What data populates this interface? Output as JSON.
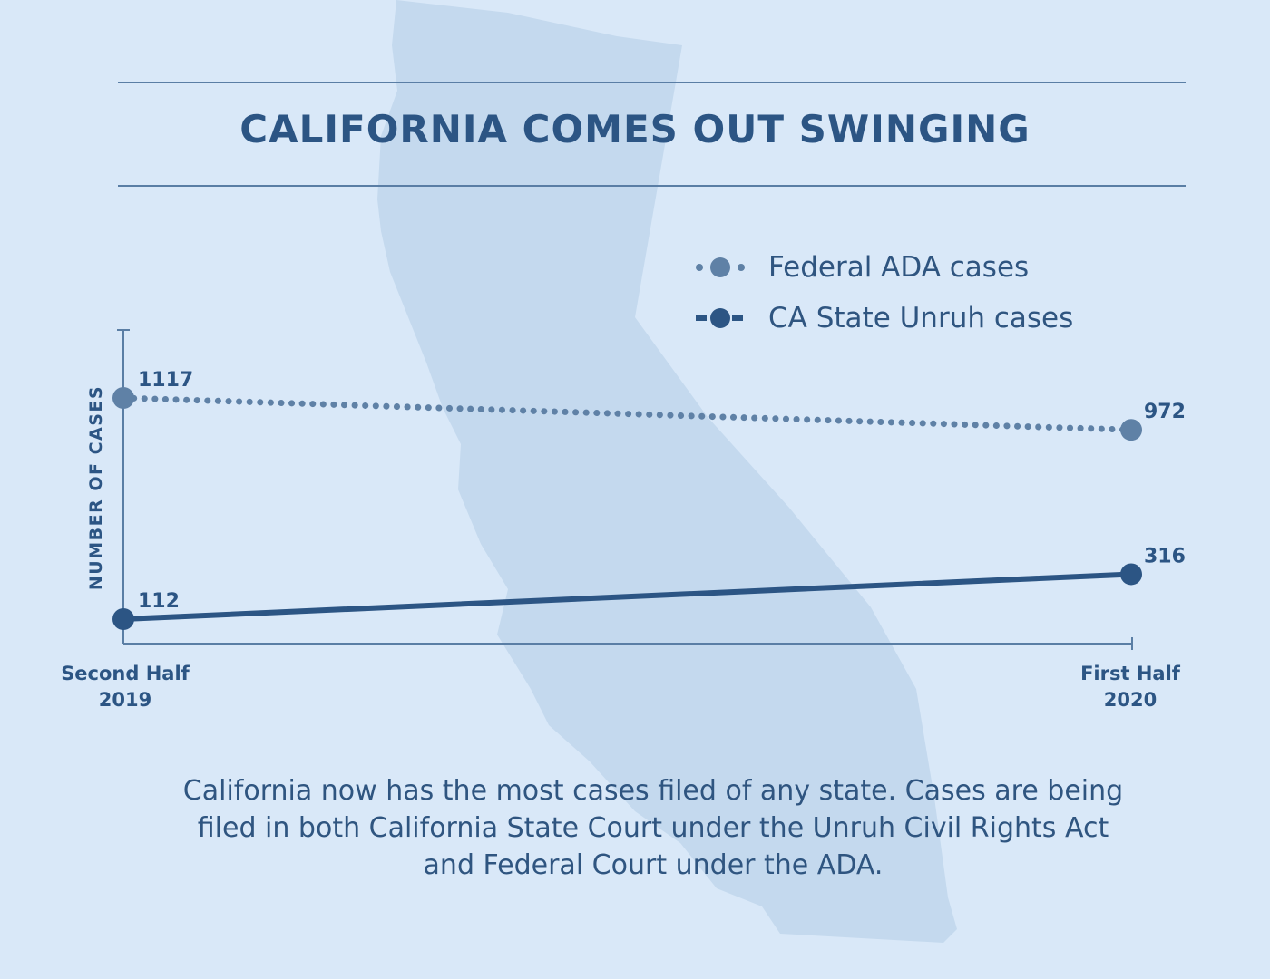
{
  "title": "CALIFORNIA COMES OUT SWINGING",
  "caption": "California now has the most cases filed of any state. Cases are being filed in both California State Court under the Unruh Civil Rights Act and Federal Court under the ADA.",
  "colors": {
    "background": "#d9e8f8",
    "map_silhouette": "#c4d9ee",
    "federal_series": "#5f81a6",
    "state_series": "#2c5584",
    "text": "#2c5584",
    "rule": "#5a7ea5"
  },
  "background_image": "california-map-silhouette",
  "chart_data": {
    "type": "line",
    "title": "",
    "xlabel": "",
    "ylabel": "NUMBER OF CASES",
    "categories": [
      [
        "Second Half",
        "2019"
      ],
      [
        "First Half",
        "2020"
      ]
    ],
    "series": [
      {
        "name": "Federal ADA cases",
        "values": [
          1117,
          972
        ],
        "labels": [
          "1117",
          "972"
        ],
        "style": "dotted",
        "color": "#5f81a6"
      },
      {
        "name": "CA State Unruh cases",
        "values": [
          112,
          316
        ],
        "labels": [
          "112",
          "316"
        ],
        "style": "solid",
        "color": "#2c5584"
      }
    ],
    "legend_position": "top-right",
    "grid": false
  }
}
